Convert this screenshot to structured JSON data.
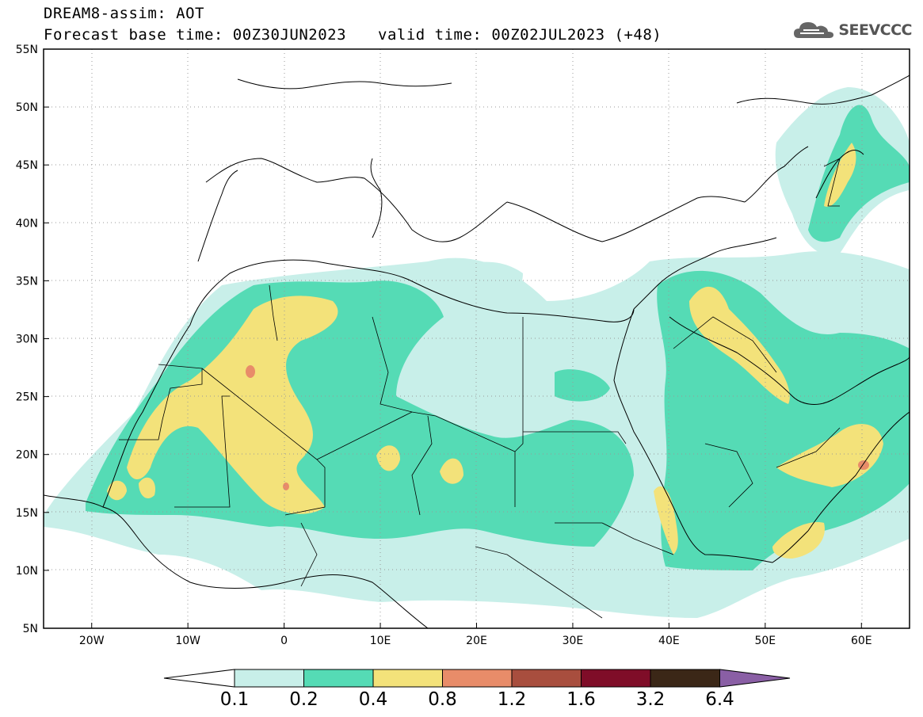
{
  "header": {
    "title_line1": "DREAM8-assim: AOT",
    "base_time": "Forecast base time: 00Z30JUN2023",
    "valid_time": "valid time: 00Z02JUL2023 (+48)"
  },
  "logo": {
    "text": "SEEVCCC",
    "icon": "cloud-icon"
  },
  "map": {
    "lon_labels": [
      "20W",
      "10W",
      "0",
      "10E",
      "20E",
      "30E",
      "40E",
      "50E",
      "60E"
    ],
    "lat_labels": [
      "55N",
      "50N",
      "45N",
      "40N",
      "35N",
      "30N",
      "25N",
      "20N",
      "15N",
      "10N",
      "5N"
    ]
  },
  "colorbar": {
    "labels": [
      "0.1",
      "0.2",
      "0.4",
      "0.8",
      "1.2",
      "1.6",
      "3.2",
      "6.4"
    ],
    "colors": [
      "#c8efe9",
      "#55dbb5",
      "#f3e27a",
      "#e88c69",
      "#a84e3e",
      "#7f0d28",
      "#3b2717",
      "#8a5fa5"
    ]
  },
  "colors": {
    "level1": "#c8efe9",
    "level2": "#55dbb5",
    "level3": "#f3e27a",
    "level4": "#e88c69"
  }
}
